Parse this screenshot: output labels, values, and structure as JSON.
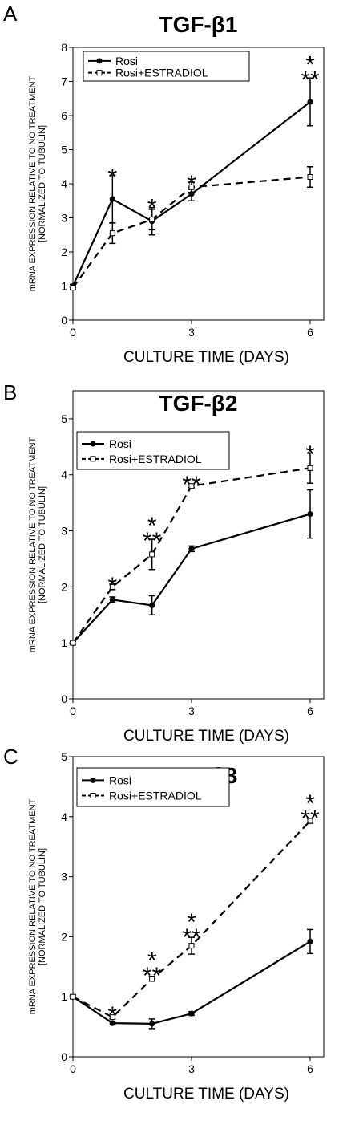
{
  "figure": {
    "ylabel_line1": "mRNA EXPRESSION RELATIVE TO NO TREATMENT",
    "ylabel_line2": "[NORMALIZED TO TUBULIN]",
    "xlabel": "CULTURE TIME (DAYS)"
  },
  "chart_data": [
    {
      "panel": "A",
      "type": "line",
      "title": "TGF-β1",
      "xlabel": "CULTURE TIME (DAYS)",
      "ylabel": "mRNA EXPRESSION RELATIVE TO NO TREATMENT [NORMALIZED TO TUBULIN]",
      "x_ticks": [
        0,
        3,
        6
      ],
      "y_ticks": [
        0,
        1,
        2,
        3,
        4,
        5,
        6,
        7,
        8
      ],
      "xlim": [
        0,
        6
      ],
      "ylim": [
        0,
        8
      ],
      "grid": false,
      "legend_position": "top-left",
      "series": [
        {
          "name": "Rosi",
          "style": "solid",
          "marker": "filled-circle",
          "x": [
            0,
            1,
            2,
            3,
            6
          ],
          "y": [
            1.0,
            3.55,
            2.9,
            3.7,
            6.4
          ],
          "err": [
            0.05,
            0.7,
            0.4,
            0.2,
            0.7
          ]
        },
        {
          "name": "Rosi+ESTRADIOL",
          "style": "dashed",
          "marker": "open-square",
          "x": [
            0,
            1,
            2,
            3,
            6
          ],
          "y": [
            0.95,
            2.55,
            2.95,
            3.9,
            4.2
          ],
          "err": [
            0.05,
            0.3,
            0.3,
            0.15,
            0.3
          ]
        }
      ],
      "annotations": [
        {
          "x": 1,
          "y": 4.25,
          "text": "*"
        },
        {
          "x": 2,
          "y": 3.35,
          "text": "*"
        },
        {
          "x": 3,
          "y": 4.05,
          "text": "*"
        },
        {
          "x": 6,
          "y": 7.1,
          "text": "*\n**"
        }
      ]
    },
    {
      "panel": "B",
      "type": "line",
      "title": "TGF-β2",
      "xlabel": "CULTURE TIME (DAYS)",
      "ylabel": "mRNA EXPRESSION RELATIVE TO NO TREATMENT [NORMALIZED TO TUBULIN]",
      "x_ticks": [
        0,
        3,
        6
      ],
      "y_ticks": [
        0,
        1,
        2,
        3,
        4,
        5
      ],
      "xlim": [
        0,
        6
      ],
      "ylim": [
        0,
        5.5
      ],
      "grid": false,
      "legend_position": "top-left",
      "series": [
        {
          "name": "Rosi",
          "style": "solid",
          "marker": "filled-circle",
          "x": [
            0,
            1,
            2,
            3,
            6
          ],
          "y": [
            1.0,
            1.77,
            1.67,
            2.68,
            3.3
          ],
          "err": [
            0.03,
            0.05,
            0.17,
            0.05,
            0.43
          ]
        },
        {
          "name": "Rosi+ESTRADIOL",
          "style": "dashed",
          "marker": "open-square",
          "x": [
            0,
            1,
            2,
            3,
            6
          ],
          "y": [
            1.0,
            2.0,
            2.58,
            3.8,
            4.12
          ],
          "err": [
            0.03,
            0.05,
            0.27,
            0.03,
            0.27
          ]
        }
      ],
      "annotations": [
        {
          "x": 1,
          "y": 2.05,
          "text": "*"
        },
        {
          "x": 2,
          "y": 2.85,
          "text": "*\n**"
        },
        {
          "x": 3,
          "y": 3.85,
          "text": "*\n**"
        },
        {
          "x": 6,
          "y": 4.4,
          "text": "*"
        }
      ]
    },
    {
      "panel": "C",
      "type": "line",
      "title": "TGF-β3",
      "xlabel": "CULTURE TIME (DAYS)",
      "ylabel": "mRNA EXPRESSION RELATIVE TO NO TREATMENT [NORMALIZED TO TUBULIN]",
      "x_ticks": [
        0,
        3,
        6
      ],
      "y_ticks": [
        0,
        1,
        2,
        3,
        4,
        5
      ],
      "xlim": [
        0,
        6
      ],
      "ylim": [
        0,
        5
      ],
      "grid": false,
      "legend_position": "top-left",
      "series": [
        {
          "name": "Rosi",
          "style": "solid",
          "marker": "filled-circle",
          "x": [
            0,
            1,
            2,
            3,
            6
          ],
          "y": [
            1.0,
            0.56,
            0.55,
            0.72,
            1.92
          ],
          "err": [
            0.03,
            0.03,
            0.08,
            0.03,
            0.2
          ]
        },
        {
          "name": "Rosi+ESTRADIOL",
          "style": "dashed",
          "marker": "open-square",
          "x": [
            0,
            1,
            2,
            3,
            6
          ],
          "y": [
            1.0,
            0.66,
            1.3,
            1.85,
            3.93
          ],
          "err": [
            0.03,
            0.03,
            0.04,
            0.14,
            0.04
          ]
        }
      ],
      "annotations": [
        {
          "x": 1,
          "y": 0.72,
          "text": "*"
        },
        {
          "x": 2,
          "y": 1.38,
          "text": "*\n**"
        },
        {
          "x": 3,
          "y": 2.02,
          "text": "*\n**"
        },
        {
          "x": 6,
          "y": 4.0,
          "text": "*\n**"
        }
      ]
    }
  ]
}
